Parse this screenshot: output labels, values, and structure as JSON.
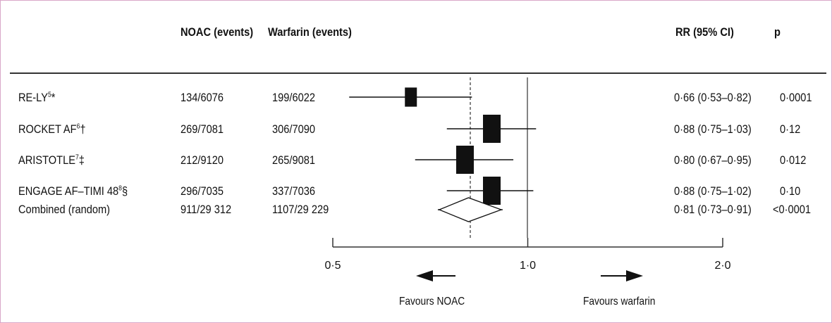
{
  "header": {
    "noac": "NOAC (events)",
    "warfarin": "Warfarin (events)",
    "rr": "RR (95% CI)",
    "p": "p"
  },
  "rows": [
    {
      "name": "RE-LY",
      "sup": "5",
      "mark": "*",
      "noac": "134/6076",
      "warfarin": "199/6022",
      "rr_text": "0·66 (0·53–0·82)",
      "p": "0·0001"
    },
    {
      "name": "ROCKET AF",
      "sup": "6",
      "mark": "†",
      "noac": "269/7081",
      "warfarin": "306/7090",
      "rr_text": "0·88 (0·75–1·03)",
      "p": "0·12"
    },
    {
      "name": "ARISTOTLE",
      "sup": "7",
      "mark": "‡",
      "noac": "212/9120",
      "warfarin": "265/9081",
      "rr_text": "0·80 (0·67–0·95)",
      "p": "0·012"
    },
    {
      "name": "ENGAGE AF–TIMI 48",
      "sup": "8",
      "mark": "§",
      "noac": "296/7035",
      "warfarin": "337/7036",
      "rr_text": "0·88 (0·75–1·02)",
      "p": "0·10"
    },
    {
      "name": "Combined (random)",
      "sup": "",
      "mark": "",
      "noac": "911/29 312",
      "warfarin": "1107/29 229",
      "rr_text": "0·81 (0·73–0·91)",
      "p": "<0·0001"
    }
  ],
  "axis": {
    "ticks": [
      {
        "value": 0.5,
        "label": "0·5"
      },
      {
        "value": 1.0,
        "label": "1·0"
      },
      {
        "value": 2.0,
        "label": "2·0"
      }
    ],
    "favours_left": "Favours NOAC",
    "favours_right": "Favours warfarin"
  },
  "chart_data": {
    "type": "forest",
    "scale": "log",
    "xlim": [
      0.5,
      2.0
    ],
    "null_value": 1.0,
    "pooled_reference": 0.81,
    "studies": [
      {
        "name": "RE-LY",
        "rr": 0.66,
        "lo": 0.53,
        "hi": 0.82,
        "p": "0·0001"
      },
      {
        "name": "ROCKET AF",
        "rr": 0.88,
        "lo": 0.75,
        "hi": 1.03,
        "p": "0·12"
      },
      {
        "name": "ARISTOTLE",
        "rr": 0.8,
        "lo": 0.67,
        "hi": 0.95,
        "p": "0·012"
      },
      {
        "name": "ENGAGE AF–TIMI 48",
        "rr": 0.88,
        "lo": 0.75,
        "hi": 1.02,
        "p": "0·10"
      }
    ],
    "pooled": {
      "name": "Combined (random)",
      "rr": 0.81,
      "lo": 0.73,
      "hi": 0.91,
      "p": "<0·0001"
    }
  }
}
